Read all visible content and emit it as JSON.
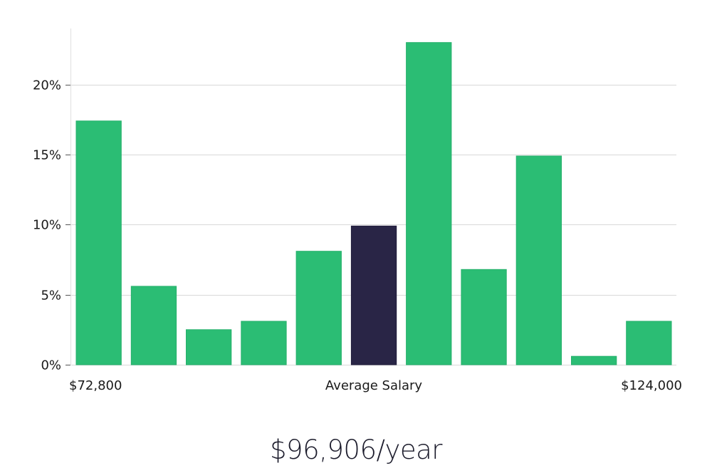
{
  "chart_data": {
    "type": "bar",
    "values": [
      17.4,
      5.6,
      2.5,
      3.1,
      8.1,
      9.9,
      23.0,
      6.8,
      14.9,
      0.6,
      3.1
    ],
    "highlight_index": 5,
    "ylim": [
      0,
      24
    ],
    "yticks": [
      0,
      5,
      10,
      15,
      20
    ],
    "ytick_labels": [
      "0%",
      "5%",
      "10%",
      "15%",
      "20%"
    ],
    "x_labels": {
      "min": "$72,800",
      "center": "Average Salary",
      "max": "$124,000"
    },
    "grid": true,
    "colors": {
      "bar": "#2bbd74",
      "highlight": "#292546",
      "grid": "#d9d9d9",
      "axis": "#e0e0e0"
    }
  },
  "salary": {
    "value": "$96,906/year"
  }
}
